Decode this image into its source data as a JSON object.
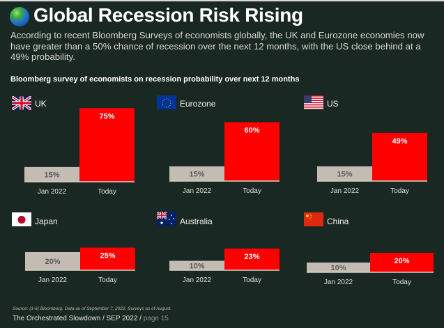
{
  "header": {
    "title": "Global Recession Risk Rising",
    "icon": "globe-icon",
    "description": "According to recent Bloomberg Surveys of economists globally, the UK and Eurozone economies now have greater than a 50% chance of recession over the next 12 months, with the US close behind at a 49% probability.",
    "subtitle": "Bloomberg survey of economists on recession probability over next 12 months"
  },
  "colors": {
    "background": "#1a2823",
    "jan_bar": "#c4bcb2",
    "today_bar": "#ff0000",
    "jan_label": "#5a5a5a",
    "today_label": "#ffffff"
  },
  "chart_data": [
    {
      "type": "bar",
      "title": "UK",
      "flag": "uk-flag-icon",
      "categories": [
        "Jan 2022",
        "Today"
      ],
      "values": [
        15,
        75
      ],
      "labels": [
        "15%",
        "75%"
      ],
      "ylim": [
        0,
        100
      ]
    },
    {
      "type": "bar",
      "title": "Eurozone",
      "flag": "eu-flag-icon",
      "categories": [
        "Jan 2022",
        "Today"
      ],
      "values": [
        15,
        60
      ],
      "labels": [
        "15%",
        "60%"
      ],
      "ylim": [
        0,
        100
      ]
    },
    {
      "type": "bar",
      "title": "US",
      "flag": "us-flag-icon",
      "categories": [
        "Jan 2022",
        "Today"
      ],
      "values": [
        15,
        49
      ],
      "labels": [
        "15%",
        "49%"
      ],
      "ylim": [
        0,
        100
      ]
    },
    {
      "type": "bar",
      "title": "Japan",
      "flag": "japan-flag-icon",
      "categories": [
        "Jan 2022",
        "Today"
      ],
      "values": [
        20,
        25
      ],
      "labels": [
        "20%",
        "25%"
      ],
      "ylim": [
        0,
        100
      ]
    },
    {
      "type": "bar",
      "title": "Australia",
      "flag": "australia-flag-icon",
      "categories": [
        "Jan 2022",
        "Today"
      ],
      "values": [
        10,
        23
      ],
      "labels": [
        "10%",
        "23%"
      ],
      "ylim": [
        0,
        100
      ]
    },
    {
      "type": "bar",
      "title": "China",
      "flag": "china-flag-icon",
      "categories": [
        "Jan 2022",
        "Today"
      ],
      "values": [
        10,
        20
      ],
      "labels": [
        "10%",
        "20%"
      ],
      "ylim": [
        0,
        100
      ]
    }
  ],
  "footer": {
    "source": "Source:  (1-6) Bloomberg. Data as of September 7, 2022. Surveys as of August.",
    "publication": "The Orchestrated Slowdown / SEP 2022 / ",
    "page": "page 15"
  }
}
